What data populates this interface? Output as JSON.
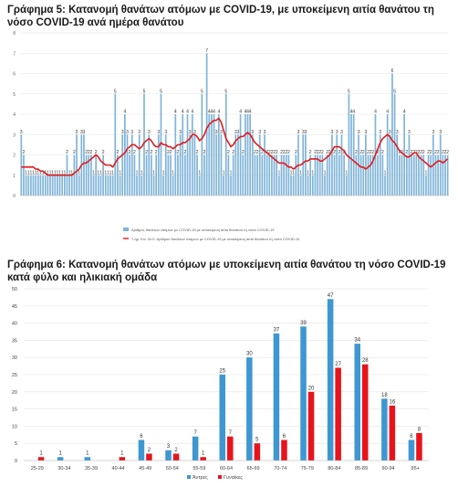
{
  "charts": [
    {
      "title": "Γράφημα 5: Κατανομή θανάτων ατόμων με COVID-19, με υποκείμενη αιτία θανάτου τη νόσο COVID-19 ανά ημέρα θανάτου"
    },
    {
      "title": "Γράφημα 6: Κατανομή θανάτων ατόμων με υποκείμενη αιτία θανάτου τη νόσο COVID-19 κατά φύλο και ηλικιακή ομάδα"
    }
  ],
  "chart_data": [
    {
      "type": "bar",
      "title": "Γράφημα 5: Κατανομή θανάτων ατόμων με COVID-19, με υποκείμενη αιτία θανάτου τη νόσο COVID-19 ανά ημέρα θανάτου",
      "ylim": [
        0,
        8
      ],
      "yticks": [
        0,
        1,
        2,
        3,
        4,
        5,
        6,
        7,
        8
      ],
      "grid": true,
      "legend_position": "bottom",
      "colors": {
        "bars": "#7fb4d8",
        "line": "#e31a1c"
      },
      "series": [
        {
          "name": "Αριθμός θανάτων ατόμων με COVID-19 με υποκείμενη αιτία θανάτου τη νόσο COVID-19",
          "values": [
            3,
            2,
            1,
            1,
            1,
            1,
            1,
            1,
            1,
            1,
            1,
            1,
            1,
            1,
            1,
            1,
            1,
            1,
            1,
            2,
            1,
            1,
            2,
            3,
            1,
            3,
            3,
            2,
            2,
            2,
            1,
            2,
            1,
            1,
            2,
            1,
            1,
            1,
            1,
            5,
            2,
            1,
            3,
            4,
            3,
            2,
            3,
            2,
            1,
            3,
            1,
            5,
            2,
            3,
            2,
            1,
            2,
            3,
            5,
            1,
            3,
            2,
            2,
            1,
            4,
            2,
            3,
            4,
            2,
            4,
            3,
            4,
            3,
            2,
            1,
            5,
            2,
            7,
            4,
            4,
            4,
            3,
            4,
            3,
            1,
            5,
            2,
            1,
            2,
            3,
            3,
            4,
            2,
            4,
            4,
            4,
            3,
            2,
            2,
            3,
            2,
            3,
            2,
            2,
            2,
            2,
            2,
            1,
            2,
            2,
            2,
            2,
            1,
            1,
            2,
            3,
            1,
            3,
            3,
            1,
            2,
            1,
            2,
            2,
            2,
            2,
            1,
            2,
            2,
            3,
            2,
            3,
            2,
            3,
            2,
            1,
            5,
            4,
            4,
            2,
            3,
            2,
            2,
            3,
            2,
            2,
            2,
            4,
            2,
            3,
            2,
            1,
            4,
            3,
            6,
            5,
            3,
            2,
            2,
            4,
            2,
            3,
            2,
            2,
            2,
            2,
            2,
            2,
            1,
            2,
            2,
            3,
            2,
            2,
            3,
            2,
            2,
            2
          ]
        },
        {
          "name": "7-ήμ. Κιν. Μ.Ο. Αριθμού θανάτων ατόμων με COVID-19 με υποκείμενη αιτία θανάτου τη νόσο COVID-19",
          "values": [
            1.4,
            1.4,
            1.4,
            1.4,
            1.4,
            1.4,
            1.3,
            1.3,
            1.2,
            1.2,
            1.1,
            1.0,
            1.0,
            1.0,
            1.0,
            1.0,
            1.0,
            1.0,
            1.0,
            1.0,
            1.0,
            1.0,
            1.1,
            1.2,
            1.3,
            1.5,
            1.6,
            1.6,
            1.7,
            1.8,
            1.9,
            2.0,
            1.9,
            1.7,
            1.6,
            1.5,
            1.5,
            1.5,
            1.4,
            1.6,
            1.8,
            1.9,
            2.0,
            2.1,
            2.3,
            2.4,
            2.5,
            2.5,
            2.4,
            2.3,
            2.4,
            2.6,
            2.7,
            2.8,
            2.7,
            2.5,
            2.4,
            2.4,
            2.6,
            2.5,
            2.5,
            2.4,
            2.4,
            2.3,
            2.4,
            2.5,
            2.5,
            2.6,
            2.6,
            2.7,
            2.8,
            3.0,
            3.0,
            2.9,
            2.7,
            2.8,
            3.0,
            3.3,
            3.5,
            3.6,
            3.7,
            3.7,
            3.8,
            3.6,
            3.2,
            2.8,
            2.6,
            2.4,
            2.5,
            2.7,
            2.8,
            2.9,
            2.9,
            3.0,
            3.1,
            3.0,
            2.8,
            2.6,
            2.5,
            2.4,
            2.3,
            2.2,
            2.1,
            2.0,
            1.9,
            1.8,
            1.7,
            1.6,
            1.6,
            1.6,
            1.5,
            1.4,
            1.4,
            1.3,
            1.4,
            1.5,
            1.5,
            1.6,
            1.7,
            1.7,
            1.8,
            1.8,
            1.8,
            1.8,
            1.7,
            1.7,
            1.8,
            1.9,
            2.0,
            2.2,
            2.4,
            2.4,
            2.4,
            2.3,
            2.2,
            2.0,
            1.9,
            1.8,
            1.7,
            1.6,
            1.5,
            1.4,
            1.4,
            1.3,
            1.4,
            1.5,
            1.7,
            2.0,
            2.3,
            2.6,
            2.8,
            2.9,
            3.0,
            2.9,
            2.7,
            2.6,
            2.4,
            2.2,
            2.1,
            2.0,
            1.9,
            1.9,
            2.0,
            2.1,
            2.1,
            1.9,
            1.8,
            1.7,
            1.6,
            1.5,
            1.4,
            1.5,
            1.6,
            1.7,
            1.7,
            1.6,
            1.7,
            1.8
          ]
        }
      ]
    },
    {
      "type": "bar",
      "title": "Γράφημα 6: Κατανομή θανάτων ατόμων με υποκείμενη αιτία θανάτου τη νόσο COVID-19 κατά φύλο και ηλικιακή ομάδα",
      "categories": [
        "25-29",
        "30-34",
        "35-39",
        "40-44",
        "45-49",
        "50-54",
        "55-59",
        "60-64",
        "65-69",
        "70-74",
        "75-79",
        "80-84",
        "85-89",
        "90-94",
        "95+"
      ],
      "ylim": [
        0,
        50
      ],
      "yticks": [
        0,
        5,
        10,
        15,
        20,
        25,
        30,
        35,
        40,
        45,
        50
      ],
      "grid": true,
      "legend_position": "bottom",
      "series": [
        {
          "name": "Άντρες",
          "color": "#3e97d1",
          "values": [
            null,
            1,
            1,
            null,
            6,
            3,
            7,
            25,
            30,
            37,
            39,
            47,
            34,
            18,
            6
          ]
        },
        {
          "name": "Γυναίκες",
          "color": "#e8141c",
          "values": [
            1,
            null,
            null,
            1,
            2,
            2,
            1,
            7,
            5,
            6,
            20,
            27,
            28,
            16,
            8
          ]
        }
      ]
    }
  ]
}
